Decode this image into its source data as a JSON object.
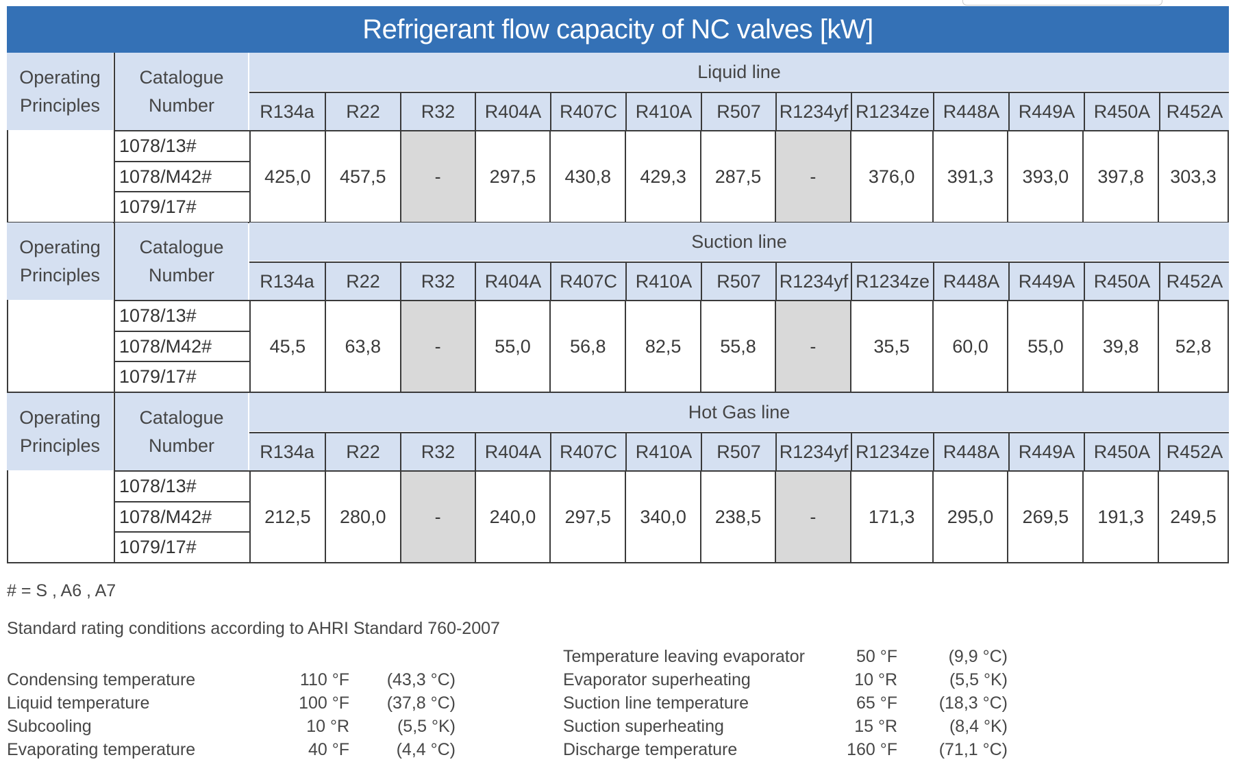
{
  "title": "Refrigerant flow capacity of NC valves [kW]",
  "header": {
    "operating": [
      "Operating",
      "Principles"
    ],
    "catalogue": [
      "Catalogue",
      "Number"
    ]
  },
  "refrigerants": [
    "R134a",
    "R22",
    "R32",
    "R404A",
    "R407C",
    "R410A",
    "R507",
    "R1234yf",
    "R1234ze",
    "R448A",
    "R449A",
    "R450A",
    "R452A"
  ],
  "catalogue_numbers": [
    "1078/13#",
    "1078/M42#",
    "1079/17#"
  ],
  "sections": [
    {
      "name": "Liquid line",
      "values": [
        "425,0",
        "457,5",
        "-",
        "297,5",
        "430,8",
        "429,3",
        "287,5",
        "-",
        "376,0",
        "391,3",
        "393,0",
        "397,8",
        "303,3"
      ]
    },
    {
      "name": "Suction line",
      "values": [
        "45,5",
        "63,8",
        "-",
        "55,0",
        "56,8",
        "82,5",
        "55,8",
        "-",
        "35,5",
        "60,0",
        "55,0",
        "39,8",
        "52,8"
      ]
    },
    {
      "name": "Hot Gas line",
      "values": [
        "212,5",
        "280,0",
        "-",
        "240,0",
        "297,5",
        "340,0",
        "238,5",
        "-",
        "171,3",
        "295,0",
        "269,5",
        "191,3",
        "249,5"
      ]
    }
  ],
  "footnote": "# = S , A6 , A7",
  "standard": "Standard rating conditions according to AHRI Standard 760-2007",
  "conditions_left": [
    {
      "label": "Condensing temperature",
      "imperial": "110 °F",
      "metric": "(43,3 °C)"
    },
    {
      "label": "Liquid temperature",
      "imperial": "100 °F",
      "metric": "(37,8 °C)"
    },
    {
      "label": "Subcooling",
      "imperial": "10 °R",
      "metric": "(5,5 °K)"
    },
    {
      "label": "Evaporating temperature",
      "imperial": "40 °F",
      "metric": "(4,4 °C)"
    }
  ],
  "conditions_right": [
    {
      "label": "Temperature leaving evaporator",
      "imperial": "50 °F",
      "metric": "(9,9 °C)"
    },
    {
      "label": "Evaporator superheating",
      "imperial": "10 °R",
      "metric": "(5,5 °K)"
    },
    {
      "label": "Suction line temperature",
      "imperial": "65 °F",
      "metric": "(18,3 °C)"
    },
    {
      "label": "Suction superheating",
      "imperial": "15 °R",
      "metric": "(8,4 °K)"
    },
    {
      "label": "Discharge temperature",
      "imperial": "160 °F",
      "metric": "(71,1 °C)"
    }
  ],
  "colors": {
    "title_bg": "#3471b6",
    "header_bg": "#d5e0f1",
    "na_bg": "#d9d9d9",
    "border": "#3a3a3a"
  }
}
